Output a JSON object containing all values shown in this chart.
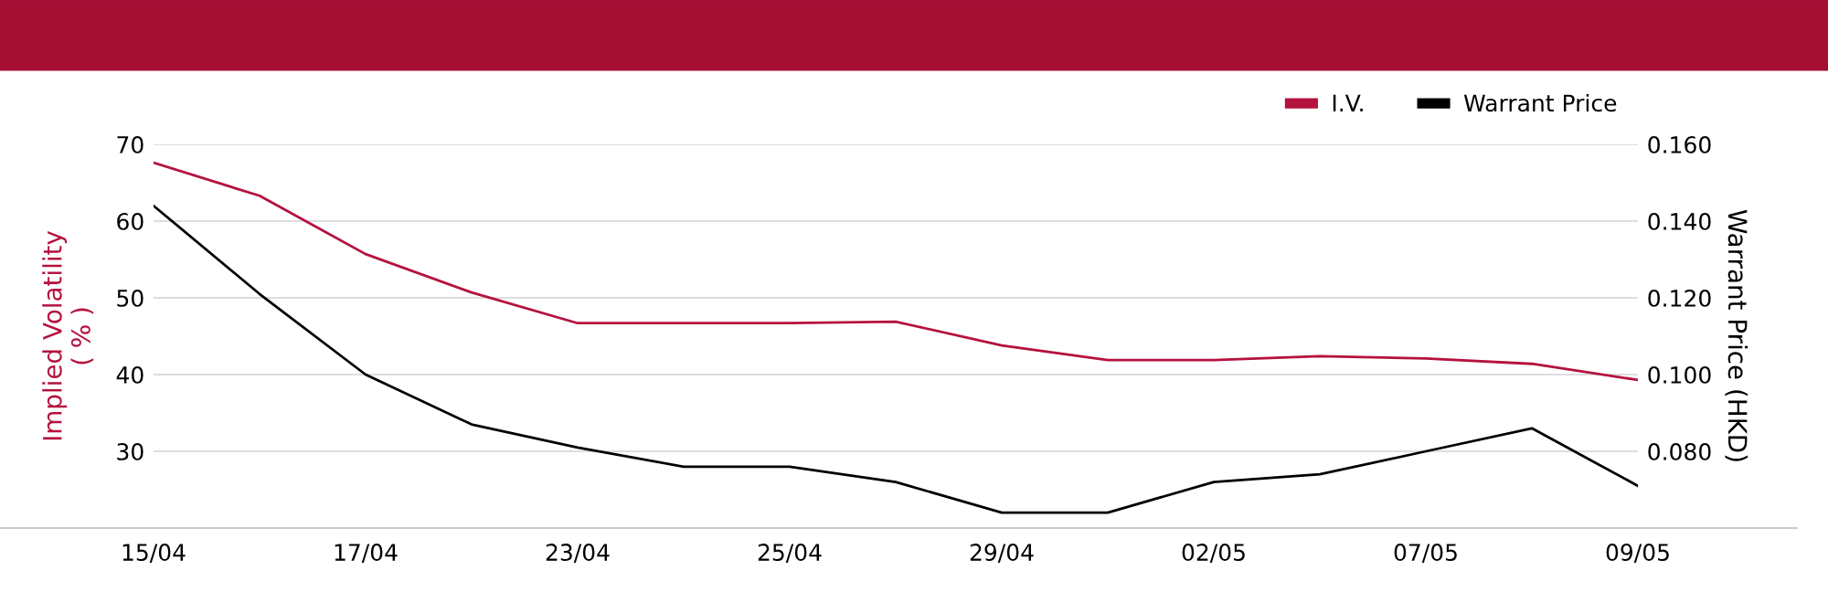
{
  "chart_data": {
    "type": "line",
    "categories": [
      "15/04",
      null,
      "17/04",
      null,
      "23/04",
      null,
      "25/04",
      null,
      "29/04",
      null,
      "02/05",
      null,
      "07/05",
      null,
      "09/05"
    ],
    "series": [
      {
        "name": "I.V.",
        "color": "#b5123e",
        "values": [
          67.6,
          63.3,
          55.7,
          50.7,
          46.7,
          46.7,
          46.7,
          46.9,
          43.8,
          41.9,
          41.9,
          42.4,
          42.1,
          41.4,
          39.3
        ]
      },
      {
        "name": "Warrant Price",
        "color": "#000000",
        "axis": "y2",
        "values": [
          0.144,
          0.121,
          0.1,
          0.087,
          0.081,
          0.076,
          0.076,
          0.072,
          0.064,
          0.064,
          0.072,
          0.074,
          0.08,
          0.086,
          0.071
        ]
      }
    ],
    "ylabel": "Implied Volatility\n( % )",
    "y2label": "Warrant Price (HKD)",
    "ylim": [
      20,
      70
    ],
    "yticks": [
      {
        "value": 20,
        "label": null
      },
      30,
      40,
      50,
      60,
      70
    ],
    "y2lim": [
      0.06,
      0.16
    ],
    "y2ticks": [
      {
        "value": 0.06,
        "label": null
      },
      {
        "value": 0.08,
        "label": "0.080"
      },
      {
        "value": 0.1,
        "label": "0.100"
      },
      {
        "value": 0.12,
        "label": "0.120"
      },
      {
        "value": 0.14,
        "label": "0.140"
      },
      {
        "value": 0.16,
        "label": "0.160"
      }
    ],
    "grid": "y",
    "legend": "top right",
    "marker": "none",
    "line_style": "solid"
  }
}
